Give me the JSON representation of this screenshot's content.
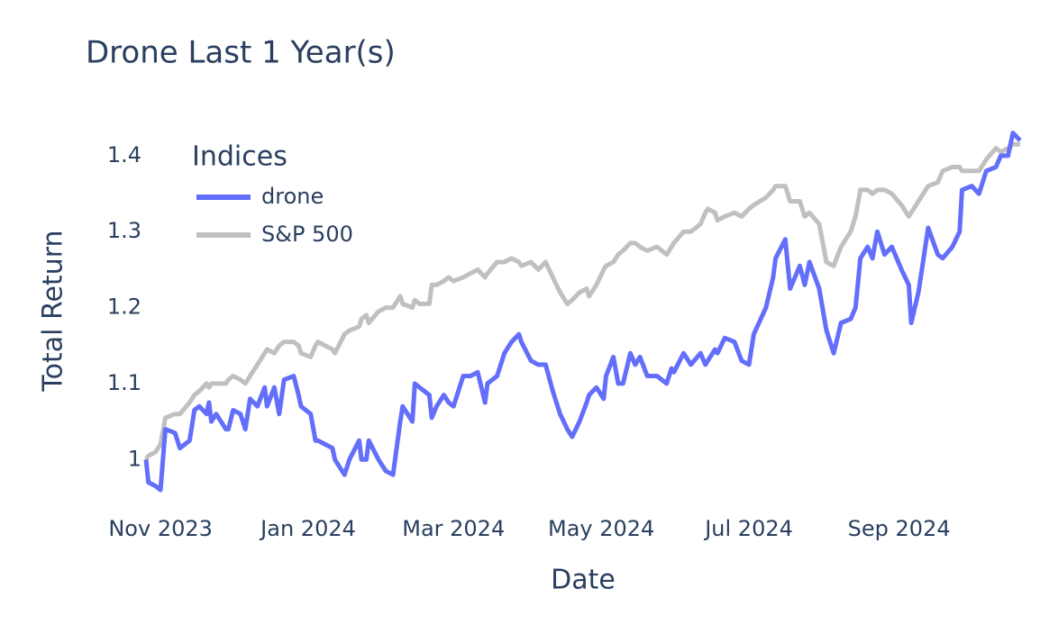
{
  "chart_data": {
    "type": "line",
    "title": "Drone Last 1 Year(s)",
    "xlabel": "Date",
    "ylabel": "Total Return",
    "legend_title": "Indices",
    "legend": "top-left",
    "grid": false,
    "x": [
      "2023-10-26",
      "2023-10-27",
      "2023-10-30",
      "2023-11-01",
      "2023-11-03",
      "2023-11-07",
      "2023-11-09",
      "2023-11-13",
      "2023-11-15",
      "2023-11-17",
      "2023-11-20",
      "2023-11-21",
      "2023-11-22",
      "2023-11-24",
      "2023-11-28",
      "2023-11-29",
      "2023-12-01",
      "2023-12-04",
      "2023-12-06",
      "2023-12-08",
      "2023-12-11",
      "2023-12-14",
      "2023-12-15",
      "2023-12-18",
      "2023-12-20",
      "2023-12-22",
      "2023-12-26",
      "2023-12-28",
      "2023-12-29",
      "2024-01-02",
      "2024-01-04",
      "2024-01-05",
      "2024-01-08",
      "2024-01-11",
      "2024-01-12",
      "2024-01-16",
      "2024-01-18",
      "2024-01-22",
      "2024-01-23",
      "2024-01-25",
      "2024-01-26",
      "2024-01-30",
      "2024-02-02",
      "2024-02-05",
      "2024-02-08",
      "2024-02-09",
      "2024-02-13",
      "2024-02-14",
      "2024-02-16",
      "2024-02-20",
      "2024-02-21",
      "2024-02-23",
      "2024-02-26",
      "2024-02-28",
      "2024-03-01",
      "2024-03-05",
      "2024-03-08",
      "2024-03-11",
      "2024-03-14",
      "2024-03-15",
      "2024-03-19",
      "2024-03-22",
      "2024-03-25",
      "2024-03-28",
      "2024-03-29",
      "2024-04-02",
      "2024-04-05",
      "2024-04-08",
      "2024-04-11",
      "2024-04-14",
      "2024-04-17",
      "2024-04-19",
      "2024-04-22",
      "2024-04-25",
      "2024-04-26",
      "2024-04-29",
      "2024-05-02",
      "2024-05-03",
      "2024-05-06",
      "2024-05-08",
      "2024-05-10",
      "2024-05-13",
      "2024-05-15",
      "2024-05-17",
      "2024-05-20",
      "2024-05-24",
      "2024-05-28",
      "2024-05-30",
      "2024-05-31",
      "2024-06-04",
      "2024-06-07",
      "2024-06-11",
      "2024-06-13",
      "2024-06-14",
      "2024-06-17",
      "2024-06-18",
      "2024-06-21",
      "2024-06-25",
      "2024-06-28",
      "2024-07-01",
      "2024-07-03",
      "2024-07-08",
      "2024-07-11",
      "2024-07-12",
      "2024-07-16",
      "2024-07-18",
      "2024-07-22",
      "2024-07-24",
      "2024-07-26",
      "2024-07-30",
      "2024-08-02",
      "2024-08-05",
      "2024-08-08",
      "2024-08-12",
      "2024-08-14",
      "2024-08-16",
      "2024-08-19",
      "2024-08-21",
      "2024-08-23",
      "2024-08-26",
      "2024-08-29",
      "2024-09-02",
      "2024-09-05",
      "2024-09-06",
      "2024-09-09",
      "2024-09-13",
      "2024-09-17",
      "2024-09-19",
      "2024-09-23",
      "2024-09-26",
      "2024-09-27",
      "2024-10-01",
      "2024-10-04",
      "2024-10-07",
      "2024-10-11",
      "2024-10-13",
      "2024-10-16",
      "2024-10-18",
      "2024-10-21"
    ],
    "series": [
      {
        "name": "drone",
        "color": "#636efa",
        "values": [
          1.0,
          0.97,
          0.965,
          0.96,
          1.04,
          1.035,
          1.015,
          1.025,
          1.065,
          1.07,
          1.06,
          1.075,
          1.05,
          1.06,
          1.04,
          1.04,
          1.065,
          1.06,
          1.04,
          1.08,
          1.07,
          1.095,
          1.07,
          1.095,
          1.06,
          1.105,
          1.11,
          1.085,
          1.07,
          1.06,
          1.025,
          1.025,
          1.02,
          1.015,
          1.0,
          0.98,
          1.0,
          1.025,
          1.0,
          1.0,
          1.025,
          1.0,
          0.985,
          0.98,
          1.05,
          1.07,
          1.05,
          1.1,
          1.095,
          1.085,
          1.055,
          1.07,
          1.085,
          1.075,
          1.07,
          1.11,
          1.11,
          1.115,
          1.075,
          1.1,
          1.11,
          1.14,
          1.155,
          1.165,
          1.155,
          1.13,
          1.125,
          1.125,
          1.09,
          1.06,
          1.04,
          1.03,
          1.05,
          1.075,
          1.085,
          1.095,
          1.08,
          1.11,
          1.135,
          1.1,
          1.1,
          1.14,
          1.125,
          1.135,
          1.11,
          1.11,
          1.1,
          1.12,
          1.115,
          1.14,
          1.125,
          1.14,
          1.125,
          1.13,
          1.145,
          1.14,
          1.16,
          1.155,
          1.13,
          1.125,
          1.165,
          1.2,
          1.24,
          1.265,
          1.29,
          1.225,
          1.255,
          1.23,
          1.26,
          1.225,
          1.17,
          1.14,
          1.18,
          1.185,
          1.2,
          1.265,
          1.28,
          1.265,
          1.3,
          1.27,
          1.28,
          1.25,
          1.23,
          1.18,
          1.22,
          1.305,
          1.27,
          1.265,
          1.28,
          1.3,
          1.355,
          1.36,
          1.35,
          1.38,
          1.385,
          1.4,
          1.4,
          1.43,
          1.42
        ]
      },
      {
        "name": "S&P 500",
        "color": "#c0c0c0",
        "values": [
          1.0,
          1.005,
          1.01,
          1.02,
          1.055,
          1.06,
          1.06,
          1.075,
          1.085,
          1.09,
          1.1,
          1.095,
          1.1,
          1.1,
          1.1,
          1.105,
          1.11,
          1.105,
          1.1,
          1.11,
          1.125,
          1.14,
          1.145,
          1.14,
          1.15,
          1.155,
          1.155,
          1.15,
          1.14,
          1.135,
          1.15,
          1.155,
          1.15,
          1.145,
          1.14,
          1.165,
          1.17,
          1.175,
          1.185,
          1.19,
          1.18,
          1.195,
          1.2,
          1.2,
          1.215,
          1.205,
          1.2,
          1.21,
          1.205,
          1.205,
          1.23,
          1.23,
          1.235,
          1.24,
          1.235,
          1.24,
          1.245,
          1.25,
          1.24,
          1.245,
          1.26,
          1.26,
          1.265,
          1.26,
          1.255,
          1.26,
          1.25,
          1.26,
          1.24,
          1.22,
          1.205,
          1.21,
          1.22,
          1.225,
          1.215,
          1.23,
          1.25,
          1.255,
          1.26,
          1.27,
          1.275,
          1.285,
          1.285,
          1.28,
          1.275,
          1.28,
          1.27,
          1.28,
          1.285,
          1.3,
          1.3,
          1.31,
          1.325,
          1.33,
          1.325,
          1.315,
          1.32,
          1.325,
          1.32,
          1.33,
          1.335,
          1.345,
          1.355,
          1.36,
          1.36,
          1.34,
          1.34,
          1.32,
          1.325,
          1.31,
          1.26,
          1.255,
          1.28,
          1.3,
          1.32,
          1.355,
          1.355,
          1.35,
          1.355,
          1.355,
          1.35,
          1.335,
          1.32,
          1.325,
          1.34,
          1.36,
          1.365,
          1.38,
          1.385,
          1.385,
          1.38,
          1.38,
          1.38,
          1.395,
          1.41,
          1.405,
          1.41,
          1.415,
          1.415
        ]
      }
    ],
    "xlim": [
      "2023-10-26",
      "2024-10-21"
    ],
    "xticks": [
      {
        "value": "2023-11-01",
        "label": "Nov 2023"
      },
      {
        "value": "2024-01-01",
        "label": "Jan 2024"
      },
      {
        "value": "2024-03-01",
        "label": "Mar 2024"
      },
      {
        "value": "2024-05-01",
        "label": "May 2024"
      },
      {
        "value": "2024-07-01",
        "label": "Jul 2024"
      },
      {
        "value": "2024-09-01",
        "label": "Sep 2024"
      }
    ],
    "ylim": [
      0.947,
      1.439
    ],
    "yticks": [
      1,
      1.1,
      1.2,
      1.3,
      1.4
    ]
  }
}
